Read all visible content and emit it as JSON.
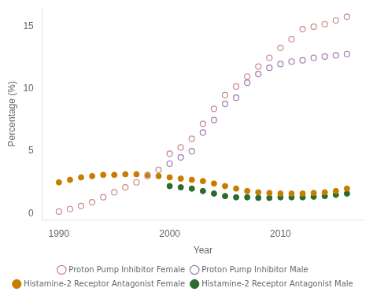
{
  "chart_data": {
    "type": "scatter",
    "x": [
      1990,
      1991,
      1992,
      1993,
      1994,
      1995,
      1996,
      1997,
      1998,
      1999,
      2000,
      2001,
      2002,
      2003,
      2004,
      2005,
      2006,
      2007,
      2008,
      2009,
      2010,
      2011,
      2012,
      2013,
      2014,
      2015,
      2016
    ],
    "series": [
      {
        "name": "Proton Pump Inhibitor Female",
        "color": "#c98a8a",
        "marker": "open_circle",
        "values": [
          0.15,
          0.35,
          0.6,
          0.9,
          1.3,
          1.7,
          2.1,
          2.5,
          3.0,
          3.5,
          4.8,
          5.3,
          6.0,
          7.2,
          8.4,
          9.5,
          10.2,
          11.0,
          11.8,
          12.5,
          13.3,
          14.0,
          14.8,
          15.0,
          15.2,
          15.5,
          15.8
        ]
      },
      {
        "name": "Proton Pump Inhibitor Male",
        "color": "#a07ab0",
        "marker": "open_circle",
        "values": [
          null,
          null,
          null,
          null,
          null,
          null,
          null,
          null,
          null,
          null,
          4.0,
          4.5,
          5.0,
          6.5,
          7.5,
          8.8,
          9.3,
          10.5,
          11.2,
          11.7,
          12.0,
          12.2,
          12.3,
          12.5,
          12.6,
          12.7,
          12.8
        ]
      },
      {
        "name": "Histamine-2 Receptor Antagonist Female",
        "color": "#c97d00",
        "marker": "circle",
        "values": [
          2.5,
          2.7,
          2.9,
          3.0,
          3.1,
          3.1,
          3.15,
          3.15,
          3.1,
          3.0,
          2.9,
          2.8,
          2.7,
          2.6,
          2.4,
          2.2,
          2.0,
          1.8,
          1.7,
          1.65,
          1.6,
          1.6,
          1.6,
          1.65,
          1.7,
          1.8,
          2.0
        ]
      },
      {
        "name": "Histamine-2 Receptor Antagonist Male",
        "color": "#2d6b2d",
        "marker": "circle",
        "values": [
          null,
          null,
          null,
          null,
          null,
          null,
          null,
          null,
          null,
          null,
          2.2,
          2.1,
          2.0,
          1.8,
          1.6,
          1.4,
          1.3,
          1.3,
          1.25,
          1.25,
          1.3,
          1.3,
          1.3,
          1.35,
          1.4,
          1.5,
          1.6
        ]
      }
    ],
    "xlabel": "Year",
    "ylabel": "Percentage (%)",
    "xlim": [
      1988.5,
      2017.5
    ],
    "xticks": [
      1990,
      2000,
      2010
    ],
    "ylim": [
      -0.5,
      16.5
    ],
    "yticks": [
      0,
      5,
      10,
      15
    ],
    "grid": false,
    "legend": "bottom"
  }
}
